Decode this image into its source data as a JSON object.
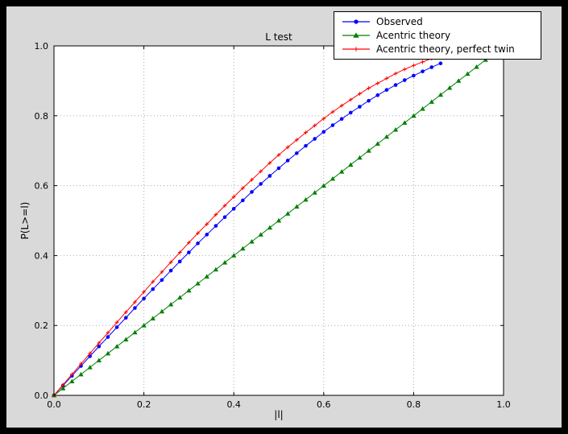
{
  "window": {
    "outer_background": "#000000",
    "figure_background": "#d9d9d9",
    "plot_background": "#ffffff",
    "grid_color": "#a8a8a8",
    "frame_color": "#000000",
    "tick_color": "#000000",
    "text_color": "#000000"
  },
  "chart_data": {
    "type": "line",
    "title": "L test",
    "xlabel": "|l|",
    "ylabel": "P(L>=l)",
    "xlim": [
      0.0,
      1.0
    ],
    "ylim": [
      0.0,
      1.0
    ],
    "xticks": [
      0.0,
      0.2,
      0.4,
      0.6,
      0.8,
      1.0
    ],
    "xtick_labels": [
      "0.0",
      "0.2",
      "0.4",
      "0.6",
      "0.8",
      "1.0"
    ],
    "yticks": [
      0.0,
      0.2,
      0.4,
      0.6,
      0.8,
      1.0
    ],
    "ytick_labels": [
      "0.0",
      "0.2",
      "0.4",
      "0.6",
      "0.8",
      "1.0"
    ],
    "grid": true,
    "grid_style": "dotted",
    "legend_position": "upper right",
    "series": [
      {
        "name": "Observed",
        "color": "#0000ff",
        "marker": "circle",
        "x": [
          0,
          0.02,
          0.04,
          0.06,
          0.08,
          0.1,
          0.12,
          0.14,
          0.16,
          0.18,
          0.2,
          0.22,
          0.24,
          0.26,
          0.28,
          0.3,
          0.32,
          0.34,
          0.36,
          0.38,
          0.4,
          0.42,
          0.44,
          0.46,
          0.48,
          0.5,
          0.52,
          0.54,
          0.56,
          0.58,
          0.6,
          0.62,
          0.64,
          0.66,
          0.68,
          0.7,
          0.72,
          0.74,
          0.76,
          0.78,
          0.8,
          0.82,
          0.84,
          0.86
        ],
        "y": [
          0,
          0.028,
          0.056,
          0.084,
          0.112,
          0.14,
          0.167,
          0.195,
          0.222,
          0.25,
          0.277,
          0.304,
          0.33,
          0.357,
          0.383,
          0.409,
          0.435,
          0.46,
          0.485,
          0.51,
          0.534,
          0.558,
          0.582,
          0.605,
          0.628,
          0.65,
          0.672,
          0.693,
          0.714,
          0.734,
          0.754,
          0.773,
          0.791,
          0.809,
          0.826,
          0.843,
          0.859,
          0.874,
          0.888,
          0.902,
          0.915,
          0.927,
          0.939,
          0.95
        ]
      },
      {
        "name": "Acentric theory",
        "color": "#008000",
        "marker": "triangle",
        "x": [
          0,
          0.02,
          0.04,
          0.06,
          0.08,
          0.1,
          0.12,
          0.14,
          0.16,
          0.18,
          0.2,
          0.22,
          0.24,
          0.26,
          0.28,
          0.3,
          0.32,
          0.34,
          0.36,
          0.38,
          0.4,
          0.42,
          0.44,
          0.46,
          0.48,
          0.5,
          0.52,
          0.54,
          0.56,
          0.58,
          0.6,
          0.62,
          0.64,
          0.66,
          0.68,
          0.7,
          0.72,
          0.74,
          0.76,
          0.78,
          0.8,
          0.82,
          0.84,
          0.86,
          0.88,
          0.9,
          0.92,
          0.94,
          0.96
        ],
        "y": [
          0,
          0.02,
          0.04,
          0.06,
          0.08,
          0.1,
          0.12,
          0.14,
          0.16,
          0.18,
          0.2,
          0.22,
          0.24,
          0.26,
          0.28,
          0.3,
          0.32,
          0.34,
          0.36,
          0.38,
          0.4,
          0.42,
          0.44,
          0.46,
          0.48,
          0.5,
          0.52,
          0.54,
          0.56,
          0.58,
          0.6,
          0.62,
          0.64,
          0.66,
          0.68,
          0.7,
          0.72,
          0.74,
          0.76,
          0.78,
          0.8,
          0.82,
          0.84,
          0.86,
          0.88,
          0.9,
          0.92,
          0.94,
          0.96
        ]
      },
      {
        "name": "Acentric theory, perfect twin",
        "color": "#ff0000",
        "marker": "plus",
        "x": [
          0,
          0.02,
          0.04,
          0.06,
          0.08,
          0.1,
          0.12,
          0.14,
          0.16,
          0.18,
          0.2,
          0.22,
          0.24,
          0.26,
          0.28,
          0.3,
          0.32,
          0.34,
          0.36,
          0.38,
          0.4,
          0.42,
          0.44,
          0.46,
          0.48,
          0.5,
          0.52,
          0.54,
          0.56,
          0.58,
          0.6,
          0.62,
          0.64,
          0.66,
          0.68,
          0.7,
          0.72,
          0.74,
          0.76,
          0.78,
          0.8,
          0.82,
          0.84,
          0.86
        ],
        "y": [
          0,
          0.03,
          0.06,
          0.09,
          0.12,
          0.15,
          0.179,
          0.209,
          0.238,
          0.267,
          0.296,
          0.325,
          0.353,
          0.381,
          0.409,
          0.437,
          0.464,
          0.49,
          0.517,
          0.543,
          0.568,
          0.593,
          0.617,
          0.641,
          0.665,
          0.688,
          0.71,
          0.731,
          0.752,
          0.772,
          0.792,
          0.811,
          0.829,
          0.846,
          0.863,
          0.879,
          0.893,
          0.907,
          0.921,
          0.933,
          0.944,
          0.954,
          0.964,
          0.972
        ]
      }
    ]
  }
}
